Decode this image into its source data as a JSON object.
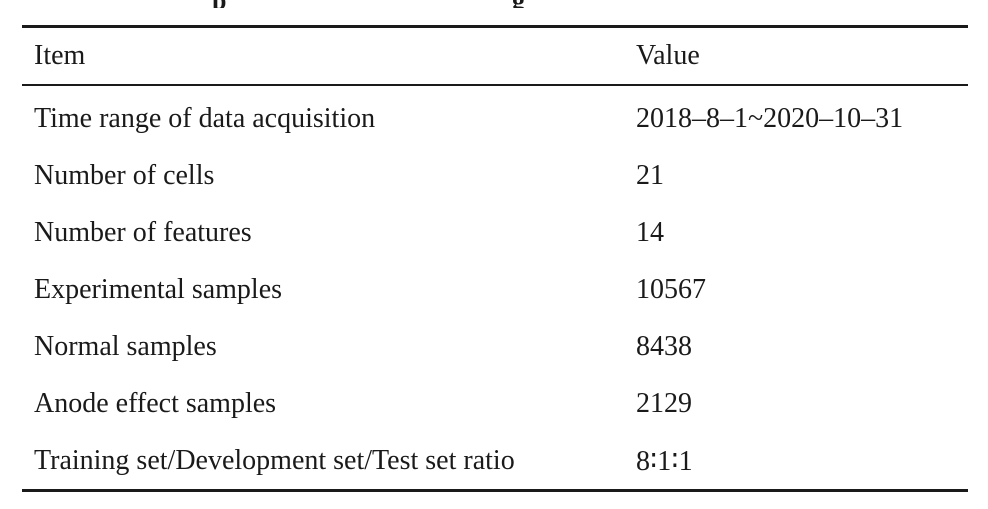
{
  "table": {
    "headers": {
      "item": "Item",
      "value": "Value"
    },
    "rows": [
      {
        "item": "Time range of data acquisition",
        "value": "2018–8–1~2020–10–31"
      },
      {
        "item": "Number of cells",
        "value": "21"
      },
      {
        "item": "Number of features",
        "value": "14"
      },
      {
        "item": "Experimental samples",
        "value": "10567"
      },
      {
        "item": "Normal samples",
        "value": "8438"
      },
      {
        "item": "Anode effect samples",
        "value": "2129"
      },
      {
        "item": "Training set/Development set/Test set ratio",
        "value": "8∶1∶1"
      }
    ]
  }
}
